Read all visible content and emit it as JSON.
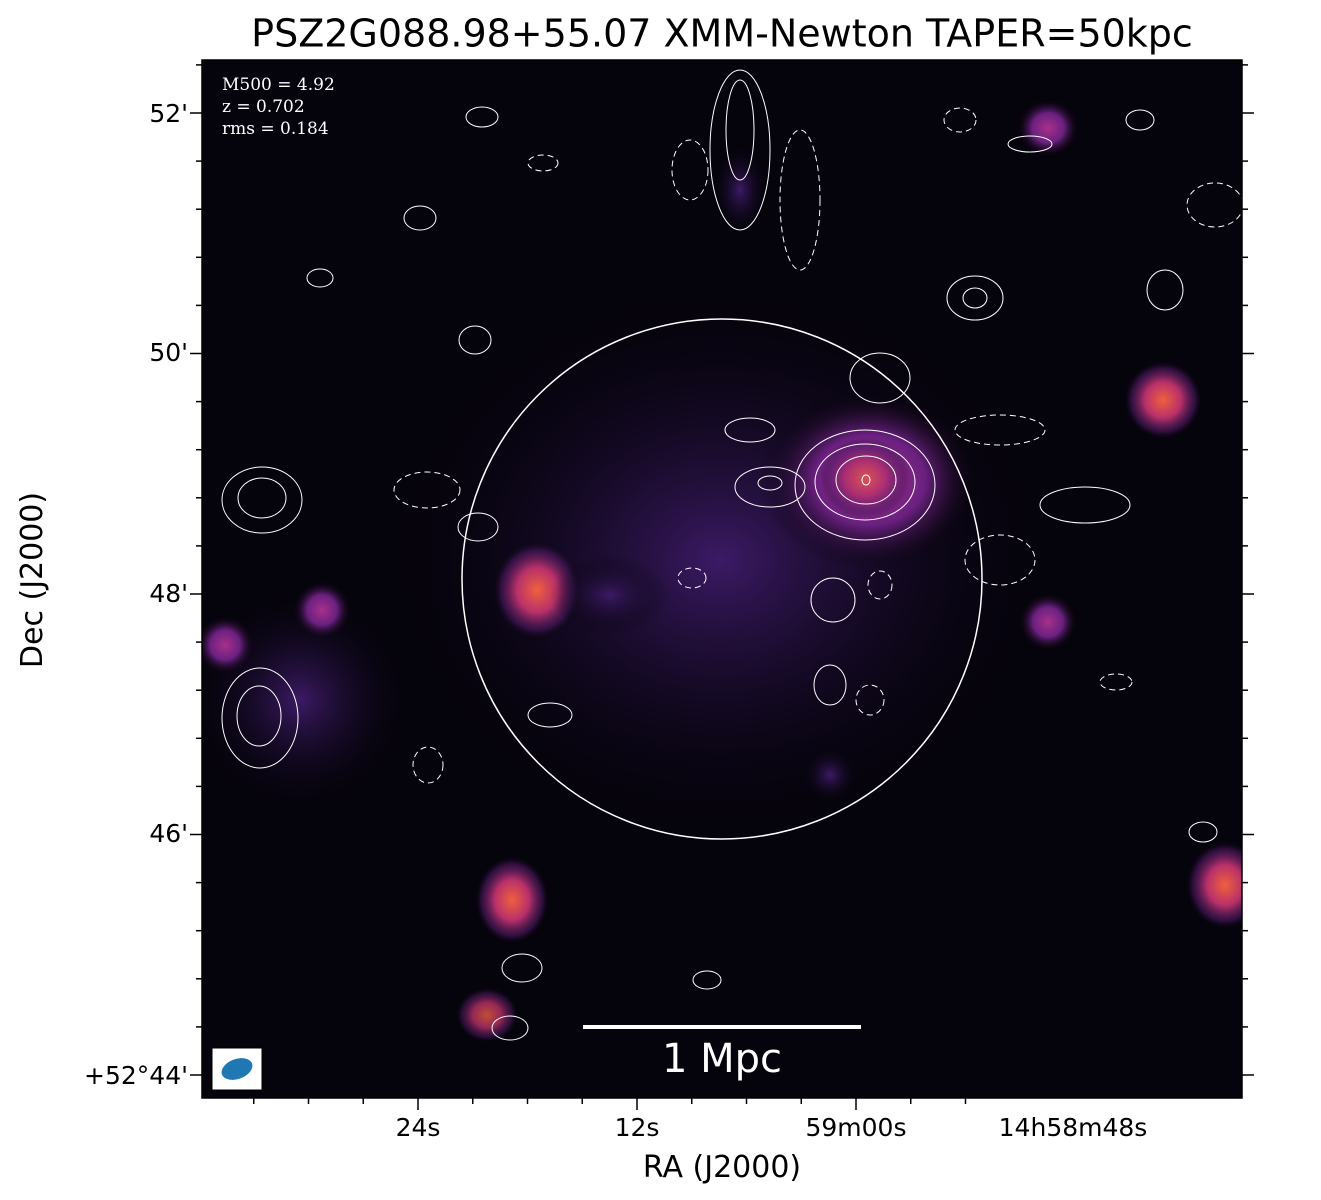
{
  "figure": {
    "title": "PSZ2G088.98+55.07 XMM-Newton TAPER=50kpc",
    "annotations": [
      "M500 = 4.92",
      "z = 0.702",
      "rms = 0.184"
    ],
    "x_axis": {
      "label": "RA (J2000)",
      "tick_labels": [
        "24s",
        "12s",
        "59m00s",
        "14h58m48s"
      ]
    },
    "y_axis": {
      "label": "Dec (J2000)",
      "tick_labels": [
        "52'",
        "50'",
        "48'",
        "46'",
        "+52°44'"
      ]
    },
    "scale_bar": "1 Mpc"
  }
}
